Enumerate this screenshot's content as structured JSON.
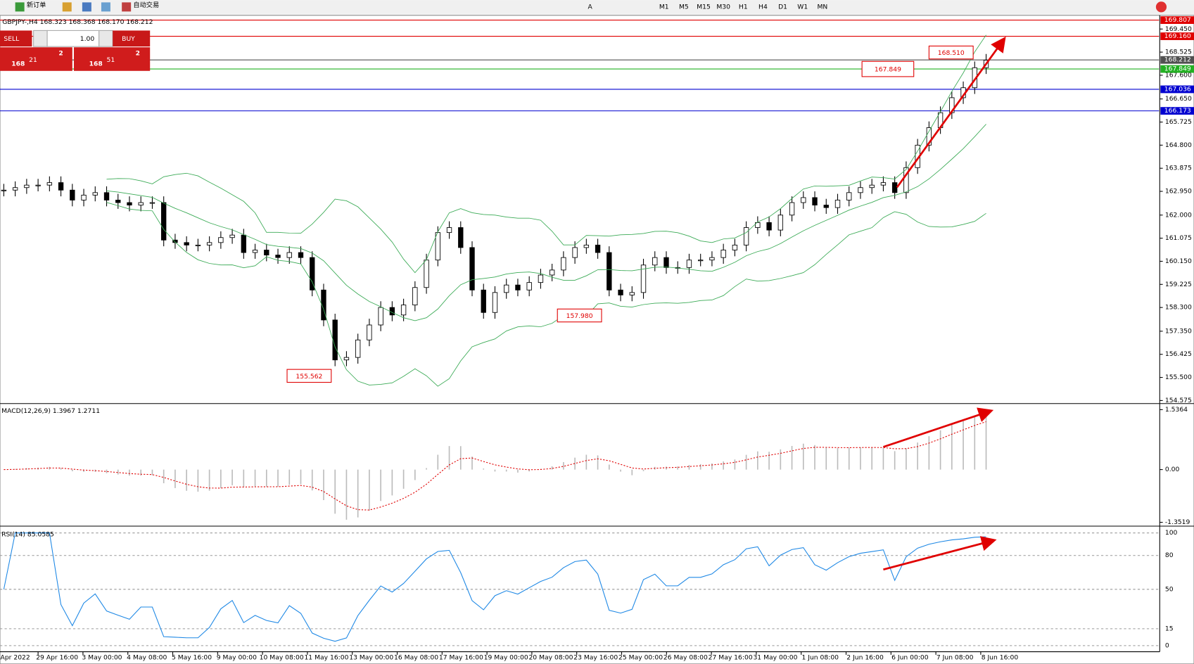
{
  "toolbar": {
    "new_order": "新订单",
    "auto_trading": "自动交易",
    "timeframes": [
      "M1",
      "M5",
      "M15",
      "M30",
      "H1",
      "H4",
      "D1",
      "W1",
      "MN"
    ],
    "text_tool": "A"
  },
  "trade_panel": {
    "sell": "SELL",
    "buy": "BUY",
    "lots": "1.00",
    "bid_big": "168",
    "bid_pips": "21",
    "bid_frac": "2",
    "ask_big": "168",
    "ask_pips": "51",
    "ask_frac": "2"
  },
  "chart": {
    "header": "GBPJPY-,H4  168.323 168.368 168.170 168.212",
    "price_ticks": [
      "169.450",
      "168.525",
      "167.600",
      "166.650",
      "165.725",
      "164.800",
      "163.875",
      "162.950",
      "162.000",
      "161.075",
      "160.150",
      "159.225",
      "158.300",
      "157.350",
      "156.425",
      "155.500",
      "154.575"
    ],
    "levels": [
      {
        "label": "169.807",
        "color": "#e00000"
      },
      {
        "label": "169.160",
        "color": "#e00000"
      },
      {
        "label": "168.212",
        "color": "#505050"
      },
      {
        "label": "167.849",
        "color": "#22b022"
      },
      {
        "label": "167.036",
        "color": "#0000d0"
      },
      {
        "label": "166.173",
        "color": "#0000d0"
      }
    ],
    "annotations": [
      "168.510",
      "167.849",
      "157.980",
      "155.562"
    ],
    "closes": [
      163.0,
      163.1,
      163.2,
      163.2,
      163.3,
      163.0,
      162.6,
      162.8,
      162.9,
      162.6,
      162.5,
      162.4,
      162.5,
      162.5,
      161.0,
      160.9,
      160.8,
      160.8,
      160.9,
      161.1,
      161.2,
      160.5,
      160.6,
      160.4,
      160.3,
      160.5,
      160.3,
      159.0,
      157.8,
      156.2,
      156.3,
      157.0,
      157.6,
      158.3,
      158.0,
      158.4,
      159.1,
      160.2,
      161.3,
      161.5,
      160.7,
      159.0,
      158.1,
      158.9,
      159.2,
      159.0,
      159.3,
      159.6,
      159.8,
      160.3,
      160.7,
      160.8,
      160.5,
      159.0,
      158.8,
      158.9,
      160.0,
      160.3,
      159.9,
      159.9,
      160.2,
      160.2,
      160.3,
      160.6,
      160.8,
      161.5,
      161.7,
      161.4,
      162.0,
      162.5,
      162.7,
      162.4,
      162.3,
      162.6,
      162.9,
      163.1,
      163.2,
      163.3,
      162.9,
      163.9,
      164.8,
      165.5,
      166.1,
      166.7,
      167.1,
      167.9,
      168.2
    ]
  },
  "macd": {
    "header": "MACD(12,26,9) 1.3967 1.2711",
    "ticks": [
      "1.5364",
      "0.00",
      "-1.3519"
    ]
  },
  "rsi": {
    "header": "RSI(14) 85.0585",
    "ticks": [
      "100",
      "80",
      "50",
      "15",
      "0"
    ]
  },
  "time_axis": [
    "Apr 2022",
    "29 Apr 16:00",
    "3 May 00:00",
    "4 May 08:00",
    "5 May 16:00",
    "9 May 00:00",
    "10 May 08:00",
    "11 May 16:00",
    "13 May 00:00",
    "16 May 08:00",
    "17 May 16:00",
    "19 May 00:00",
    "20 May 08:00",
    "23 May 16:00",
    "25 May 00:00",
    "26 May 08:00",
    "27 May 16:00",
    "31 May 00:00",
    "1 Jun 08:00",
    "2 Jun 16:00",
    "6 Jun 00:00",
    "7 Jun 08:00",
    "8 Jun 16:00"
  ]
}
